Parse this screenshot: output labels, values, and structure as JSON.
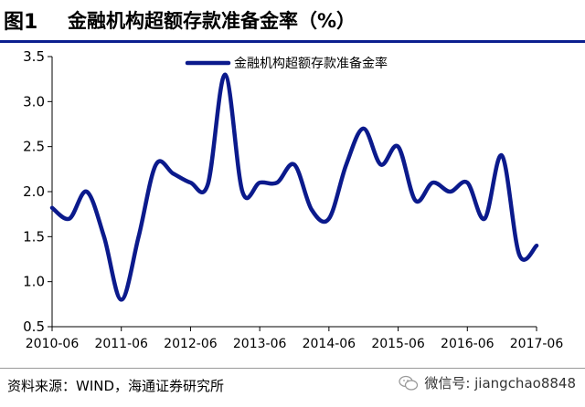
{
  "title": {
    "prefix": "图1",
    "text": "金融机构超额存款准备金率（%）"
  },
  "source": "资料来源：WIND，海通证券研究所",
  "watermark": {
    "text": "微信号: jiangchao8848",
    "icon": "wechat-icon"
  },
  "colors": {
    "series": "#0b1a8c",
    "title_rule": "#0b1f8f"
  },
  "chart_data": {
    "type": "line",
    "title": "",
    "xlabel": "",
    "ylabel": "",
    "ylim": [
      0.5,
      3.5
    ],
    "yticks": [
      "0.5",
      "1.0",
      "1.5",
      "2.0",
      "2.5",
      "3.0",
      "3.5"
    ],
    "xticks": [
      "2010-06",
      "2011-06",
      "2012-06",
      "2013-06",
      "2014-06",
      "2015-06",
      "2016-06",
      "2017-06"
    ],
    "legend": "top-center",
    "grid": false,
    "series": [
      {
        "name": "金融机构超额存款准备金率",
        "x": [
          "2010-06",
          "2010-09",
          "2010-12",
          "2011-03",
          "2011-06",
          "2011-09",
          "2011-12",
          "2012-03",
          "2012-06",
          "2012-09",
          "2012-12",
          "2013-03",
          "2013-06",
          "2013-09",
          "2013-12",
          "2014-03",
          "2014-06",
          "2014-09",
          "2014-12",
          "2015-03",
          "2015-06",
          "2015-09",
          "2015-12",
          "2016-03",
          "2016-06",
          "2016-09",
          "2016-12",
          "2017-03",
          "2017-06"
        ],
        "values": [
          1.82,
          1.7,
          2.0,
          1.5,
          0.8,
          1.5,
          2.3,
          2.2,
          2.1,
          2.08,
          3.3,
          2.0,
          2.1,
          2.1,
          2.3,
          1.8,
          1.7,
          2.3,
          2.7,
          2.3,
          2.5,
          1.9,
          2.1,
          2.0,
          2.1,
          1.7,
          2.4,
          1.3,
          1.4
        ]
      }
    ]
  }
}
